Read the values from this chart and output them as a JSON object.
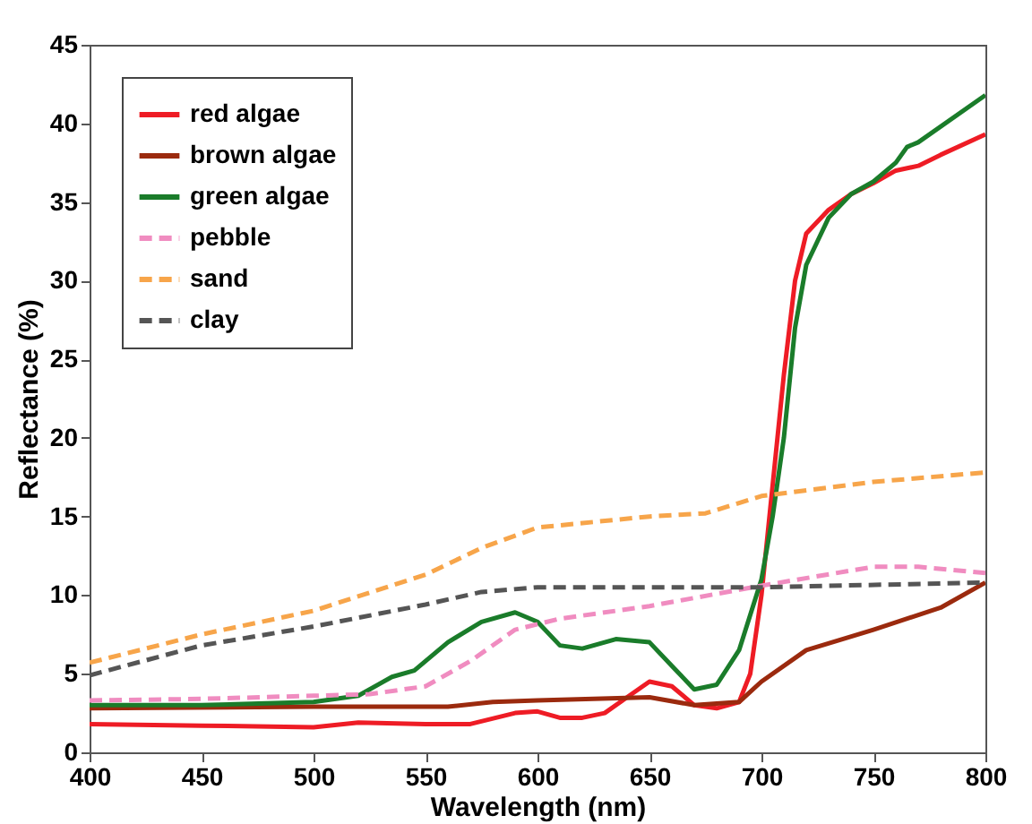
{
  "chart_data": {
    "type": "line",
    "xlabel": "Wavelength (nm)",
    "ylabel": "Reflectance (%)",
    "xlim": [
      400,
      800
    ],
    "ylim": [
      0,
      45
    ],
    "xticks": [
      400,
      450,
      500,
      550,
      600,
      650,
      700,
      750,
      800
    ],
    "yticks": [
      0,
      5,
      10,
      15,
      20,
      25,
      30,
      35,
      40,
      45
    ],
    "grid": false,
    "legend": "top left",
    "marker": "none",
    "series": [
      {
        "name": "red algae",
        "color": "#ee1c25",
        "line_style": "solid",
        "x": [
          400,
          450,
          500,
          520,
          550,
          570,
          590,
          600,
          610,
          620,
          630,
          640,
          650,
          660,
          670,
          680,
          690,
          695,
          700,
          705,
          710,
          715,
          720,
          730,
          740,
          750,
          760,
          770,
          780,
          800
        ],
        "values": [
          1.8,
          1.7,
          1.6,
          1.9,
          1.8,
          1.8,
          2.5,
          2.6,
          2.2,
          2.2,
          2.5,
          3.5,
          4.5,
          4.2,
          3.0,
          2.8,
          3.2,
          5,
          10,
          17,
          24,
          30,
          33,
          34.5,
          35.5,
          36.2,
          37,
          37.3,
          38,
          39.3
        ]
      },
      {
        "name": "brown algae",
        "color": "#9b2a0e",
        "line_style": "solid",
        "x": [
          400,
          500,
          560,
          580,
          600,
          650,
          670,
          690,
          700,
          720,
          750,
          780,
          800
        ],
        "values": [
          2.8,
          2.9,
          2.9,
          3.2,
          3.3,
          3.5,
          3.0,
          3.2,
          4.5,
          6.5,
          7.8,
          9.2,
          10.8
        ]
      },
      {
        "name": "green algae",
        "color": "#1a7c2a",
        "line_style": "solid",
        "x": [
          400,
          450,
          500,
          520,
          535,
          545,
          560,
          575,
          590,
          600,
          610,
          620,
          635,
          650,
          660,
          670,
          680,
          690,
          700,
          705,
          710,
          715,
          720,
          730,
          740,
          750,
          760,
          765,
          770,
          800
        ],
        "values": [
          3.0,
          3.0,
          3.2,
          3.6,
          4.8,
          5.2,
          7.0,
          8.3,
          8.9,
          8.3,
          6.8,
          6.6,
          7.2,
          7.0,
          5.5,
          4.0,
          4.3,
          6.5,
          11,
          15,
          20,
          27,
          31,
          34,
          35.5,
          36.3,
          37.5,
          38.5,
          38.8,
          41.8
        ]
      },
      {
        "name": "pebble",
        "color": "#f08cc0",
        "line_style": "dashed",
        "x": [
          400,
          450,
          500,
          525,
          550,
          570,
          590,
          610,
          650,
          700,
          750,
          770,
          800
        ],
        "values": [
          3.3,
          3.4,
          3.6,
          3.7,
          4.2,
          5.8,
          7.8,
          8.5,
          9.3,
          10.6,
          11.8,
          11.8,
          11.4
        ]
      },
      {
        "name": "sand",
        "color": "#f7a54a",
        "line_style": "dashed",
        "x": [
          400,
          450,
          500,
          550,
          575,
          600,
          650,
          675,
          700,
          750,
          800
        ],
        "values": [
          5.7,
          7.5,
          9.0,
          11.3,
          13.0,
          14.3,
          15.0,
          15.2,
          16.3,
          17.2,
          17.8
        ]
      },
      {
        "name": "clay",
        "color": "#555555",
        "line_style": "dashed",
        "x": [
          400,
          450,
          500,
          550,
          575,
          600,
          700,
          800
        ],
        "values": [
          4.9,
          6.8,
          8.0,
          9.4,
          10.2,
          10.5,
          10.5,
          10.8
        ]
      }
    ]
  }
}
